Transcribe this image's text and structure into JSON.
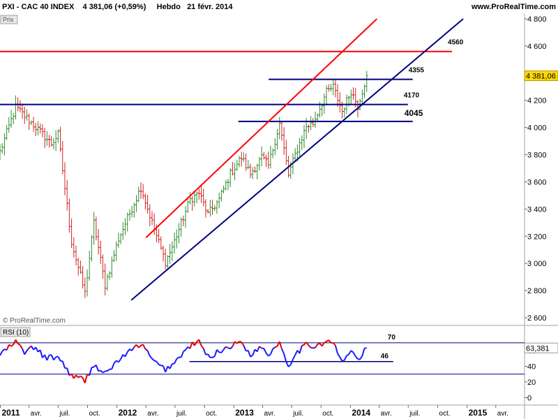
{
  "header": {
    "instrument": "PXI - CAC 40 INDEX",
    "quote": "4 381,06 (+0,59%)",
    "period": "Hebdo",
    "date": "21 févr. 2014",
    "site": "www.ProRealTime.com"
  },
  "price_panel": {
    "label": "Prix",
    "watermark": "© ProRealTime.com",
    "last_price": "4 381,06"
  },
  "rsi_panel": {
    "label": "RSI (10)",
    "last_value": "63,381"
  },
  "colors": {
    "up_bar": "#2e8b2e",
    "down_bar": "#d02020",
    "trendline_blue": "#000080",
    "trendline_red": "#ff0000",
    "rsi_line": "#1a1aff",
    "rsi_overbought": "#e00000",
    "rsi_oversold": "#e00000",
    "last_price_badge": "#ffd700"
  },
  "chart_data": [
    {
      "type": "ohlc",
      "title": "CAC 40 INDEX",
      "timeframe": "weekly",
      "y_ticks": [
        2600,
        2800,
        3000,
        3200,
        3400,
        3600,
        3800,
        4000,
        4200,
        4400,
        4600,
        4800
      ],
      "y_tick_labels": [
        "2 600",
        "2 800",
        "3 000",
        "3 200",
        "3 400",
        "3 600",
        "3 800",
        "4 000",
        "4 200",
        "4 400",
        "4 600",
        "4 800"
      ],
      "ylim": [
        2600,
        4800
      ],
      "x_tick_labels": [
        "2011",
        "avr.",
        "juil.",
        "oct.",
        "2012",
        "avr.",
        "juil.",
        "oct.",
        "2013",
        "avr.",
        "juil.",
        "oct.",
        "2014",
        "avr.",
        "juil.",
        "oct.",
        "2015",
        "avr."
      ],
      "x_ticks": [
        "2011-01",
        "2011-04",
        "2011-07",
        "2011-10",
        "2012-01",
        "2012-04",
        "2012-07",
        "2012-10",
        "2013-01",
        "2013-04",
        "2013-07",
        "2013-10",
        "2014-01",
        "2014-04",
        "2014-07",
        "2014-10",
        "2015-01",
        "2015-04"
      ],
      "series_path": [
        [
          "2010-12-31",
          3820
        ],
        [
          "2011-02-18",
          4150
        ],
        [
          "2011-04-15",
          4020
        ],
        [
          "2011-06-10",
          3880
        ],
        [
          "2011-07-01",
          3950
        ],
        [
          "2011-08-12",
          3160
        ],
        [
          "2011-09-23",
          2780
        ],
        [
          "2011-10-21",
          3300
        ],
        [
          "2011-11-25",
          2840
        ],
        [
          "2012-01-06",
          3180
        ],
        [
          "2012-03-16",
          3560
        ],
        [
          "2012-04-27",
          3250
        ],
        [
          "2012-06-01",
          3010
        ],
        [
          "2012-06-22",
          3120
        ],
        [
          "2012-08-17",
          3470
        ],
        [
          "2012-09-14",
          3520
        ],
        [
          "2012-10-12",
          3360
        ],
        [
          "2012-11-16",
          3470
        ],
        [
          "2012-12-21",
          3660
        ],
        [
          "2013-01-25",
          3780
        ],
        [
          "2013-02-22",
          3660
        ],
        [
          "2013-03-29",
          3780
        ],
        [
          "2013-04-19",
          3720
        ],
        [
          "2013-05-24",
          4030
        ],
        [
          "2013-06-21",
          3650
        ],
        [
          "2013-07-12",
          3800
        ],
        [
          "2013-08-16",
          4010
        ],
        [
          "2013-09-06",
          4030
        ],
        [
          "2013-10-18",
          4260
        ],
        [
          "2013-11-08",
          4300
        ],
        [
          "2013-12-06",
          4120
        ],
        [
          "2014-01-03",
          4270
        ],
        [
          "2014-01-24",
          4160
        ],
        [
          "2014-02-21",
          4381.06
        ]
      ],
      "levels": [
        {
          "label": "4560",
          "value": 4560,
          "color": "#ff0000",
          "from": "2010-12-31",
          "to": "2014-11-15"
        },
        {
          "label": "4355",
          "value": 4355,
          "color": "#000080",
          "from": "2013-04-20",
          "to": "2014-07-15"
        },
        {
          "label": "4170",
          "value": 4170,
          "color": "#000080",
          "from": "2010-12-31",
          "to": "2014-06-30"
        },
        {
          "label": "4045",
          "value": 4045,
          "color": "#000080",
          "from": "2013-01-15",
          "to": "2014-07-15"
        }
      ],
      "trendlines": [
        {
          "color": "#ff0000",
          "from": [
            "2012-04-01",
            3190
          ],
          "to": [
            "2014-03-25",
            4800
          ]
        },
        {
          "color": "#000080",
          "from": [
            "2012-02-15",
            2730
          ],
          "to": [
            "2014-12-20",
            4800
          ]
        }
      ],
      "last_value": 4381.06
    },
    {
      "type": "line",
      "title": "RSI (10)",
      "y_ticks": [
        0,
        20,
        40,
        60
      ],
      "ylim": [
        -5,
        85
      ],
      "reference_lines": [
        {
          "label": "70",
          "value": 70
        },
        {
          "label": "30",
          "value": 30
        },
        {
          "label": "46",
          "value": 46
        }
      ],
      "series": [
        {
          "name": "RSI (10)",
          "values_path": [
            [
              "2010-12-31",
              55
            ],
            [
              "2011-02-18",
              71
            ],
            [
              "2011-03-18",
              58
            ],
            [
              "2011-04-15",
              64
            ],
            [
              "2011-05-27",
              50
            ],
            [
              "2011-07-01",
              52
            ],
            [
              "2011-08-12",
              28
            ],
            [
              "2011-09-23",
              22
            ],
            [
              "2011-10-21",
              42
            ],
            [
              "2011-11-25",
              30
            ],
            [
              "2012-01-06",
              48
            ],
            [
              "2012-03-16",
              69
            ],
            [
              "2012-04-27",
              45
            ],
            [
              "2012-06-01",
              36
            ],
            [
              "2012-06-22",
              42
            ],
            [
              "2012-08-17",
              66
            ],
            [
              "2012-09-14",
              71
            ],
            [
              "2012-10-12",
              52
            ],
            [
              "2012-11-16",
              59
            ],
            [
              "2012-12-21",
              66
            ],
            [
              "2013-01-25",
              71
            ],
            [
              "2013-02-22",
              55
            ],
            [
              "2013-03-29",
              65
            ],
            [
              "2013-04-19",
              55
            ],
            [
              "2013-05-24",
              71
            ],
            [
              "2013-06-21",
              41
            ],
            [
              "2013-07-12",
              56
            ],
            [
              "2013-08-16",
              67
            ],
            [
              "2013-09-06",
              66
            ],
            [
              "2013-10-18",
              71
            ],
            [
              "2013-11-08",
              70
            ],
            [
              "2013-12-06",
              44
            ],
            [
              "2014-01-03",
              61
            ],
            [
              "2014-01-24",
              47
            ],
            [
              "2014-02-21",
              63.381
            ]
          ]
        }
      ],
      "last_value": 63.381
    }
  ]
}
